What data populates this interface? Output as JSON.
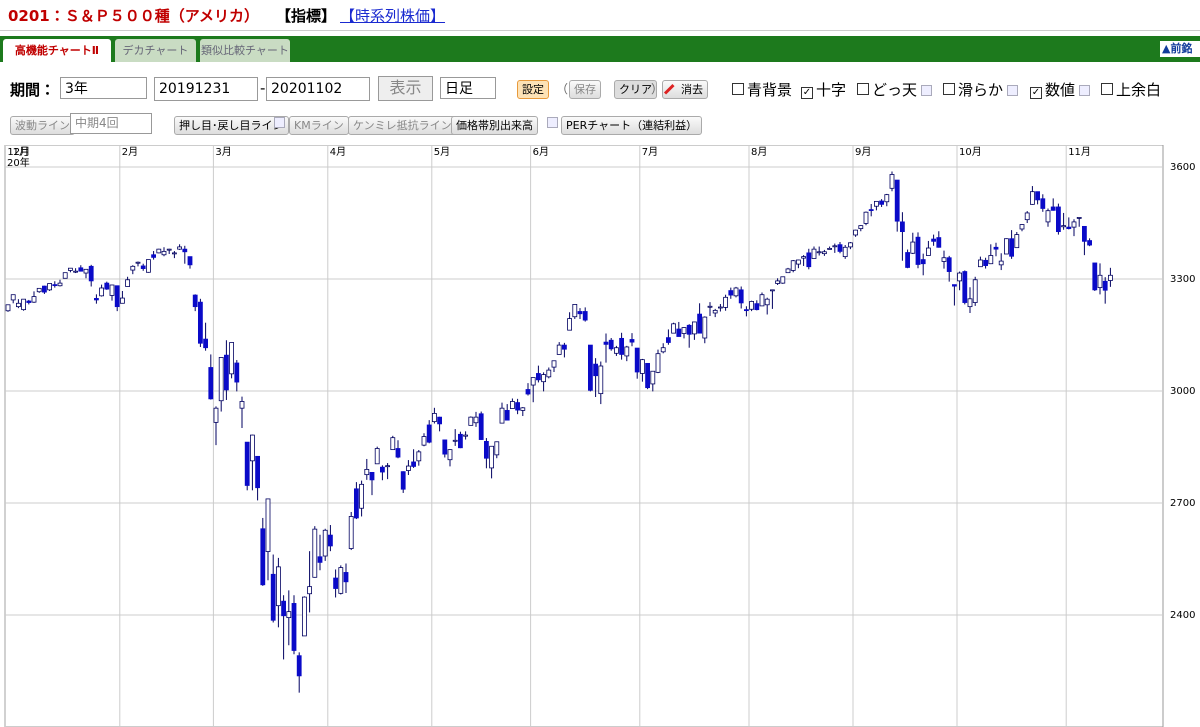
{
  "header": {
    "name": "0201：Ｓ＆Ｐ５００種（アメリカ）",
    "kind": "【指標】",
    "link": "【時系列株価】"
  },
  "tabs": [
    "高機能チャートⅡ",
    "デカチャート",
    "類似比較チャート"
  ],
  "nav_button": "▲前銘",
  "controls": {
    "period_label": "期間：",
    "period": "3年",
    "from": "20191231",
    "separator": "-",
    "to": "20201102",
    "show": "表示",
    "interval": "日足",
    "settings": "設定",
    "paren_open": "（",
    "save": "保存",
    "clear": "クリア",
    "paren_close": "）",
    "erase": "消去",
    "options": [
      {
        "label": "青背景",
        "checked": false,
        "help": false
      },
      {
        "label": "十字",
        "checked": true,
        "help": false
      },
      {
        "label": "どっ天",
        "checked": false,
        "help": true
      },
      {
        "label": "滑らか",
        "checked": false,
        "help": true
      },
      {
        "label": "数値",
        "checked": true,
        "help": true
      },
      {
        "label": "上余白",
        "checked": false,
        "help": false
      }
    ]
  },
  "tools": {
    "wave": "波動ライン",
    "term": "中期4回",
    "pullback": "押し目･戻し目ライン",
    "km": "KMライン",
    "resist": "ケンミレ抵抗ライン",
    "volume": "価格帯別出来高",
    "per": "PERチャート（連結利益）"
  },
  "chart_data": {
    "type": "candlestick",
    "x_year_label": "20年",
    "categories": [
      "12月",
      "1月",
      null,
      null,
      null,
      null,
      null,
      null,
      null,
      null,
      null,
      null,
      null,
      null,
      null,
      null,
      null,
      null,
      null,
      null,
      null,
      null,
      "2月",
      null,
      null,
      null,
      null,
      null,
      null,
      null,
      null,
      null,
      null,
      null,
      null,
      null,
      null,
      null,
      null,
      null,
      "3月",
      null,
      null,
      null,
      null,
      null,
      null,
      null,
      null,
      null,
      null,
      null,
      null,
      null,
      null,
      null,
      null,
      null,
      null,
      null,
      null,
      null,
      "4月",
      null,
      null,
      null,
      null,
      null,
      null,
      null,
      null,
      null,
      null,
      null,
      null,
      null,
      null,
      null,
      null,
      null,
      null,
      null,
      "5月",
      null,
      null,
      null,
      null,
      null,
      null,
      null,
      null,
      null,
      null,
      null,
      null,
      null,
      null,
      null,
      null,
      null,
      null,
      "6月",
      null,
      null,
      null,
      null,
      null,
      null,
      null,
      null,
      null,
      null,
      null,
      null,
      null,
      null,
      null,
      null,
      null,
      null,
      null,
      null,
      "7月",
      null,
      null,
      null,
      null,
      null,
      null,
      null,
      null,
      null,
      null,
      null,
      null,
      null,
      null,
      null,
      null,
      null,
      null,
      null,
      null,
      "8月",
      null,
      null,
      null,
      null,
      null,
      null,
      null,
      null,
      null,
      null,
      null,
      null,
      null,
      null,
      null,
      null,
      null,
      null,
      null,
      "9月",
      null,
      null,
      null,
      null,
      null,
      null,
      null,
      null,
      null,
      null,
      null,
      null,
      null,
      null,
      null,
      null,
      null,
      null,
      null,
      "10月",
      null,
      null,
      null,
      null,
      null,
      null,
      null,
      null,
      null,
      null,
      null,
      null,
      null,
      null,
      null,
      null,
      null,
      null,
      null,
      null,
      "11月"
    ],
    "ohlc": [
      [
        3215,
        3231,
        3212,
        3231
      ],
      [
        3244,
        3258,
        3235,
        3258
      ],
      [
        3226,
        3246,
        3222,
        3235
      ],
      [
        3218,
        3246,
        3215,
        3246
      ],
      [
        3241,
        3244,
        3232,
        3237
      ],
      [
        3238,
        3267,
        3236,
        3253
      ],
      [
        3266,
        3275,
        3263,
        3275
      ],
      [
        3281,
        3282,
        3260,
        3265
      ],
      [
        3271,
        3288,
        3268,
        3288
      ],
      [
        3285,
        3294,
        3277,
        3283
      ],
      [
        3282,
        3298,
        3280,
        3289
      ],
      [
        3302,
        3317,
        3302,
        3317
      ],
      [
        3323,
        3329,
        3318,
        3329
      ],
      [
        3321,
        3329,
        3316,
        3321
      ],
      [
        3330,
        3337,
        3320,
        3321
      ],
      [
        3316,
        3326,
        3302,
        3326
      ],
      [
        3334,
        3338,
        3280,
        3295
      ],
      [
        3248,
        3259,
        3234,
        3244
      ],
      [
        3255,
        3285,
        3253,
        3276
      ],
      [
        3289,
        3293,
        3271,
        3273
      ],
      [
        3256,
        3285,
        3242,
        3284
      ],
      [
        3282,
        3282,
        3214,
        3226
      ],
      [
        3235,
        3268,
        3235,
        3249
      ],
      [
        3280,
        3306,
        3280,
        3298
      ],
      [
        3324,
        3337,
        3313,
        3334
      ],
      [
        3344,
        3347,
        3334,
        3345
      ],
      [
        3335,
        3341,
        3322,
        3328
      ],
      [
        3318,
        3352,
        3317,
        3352
      ],
      [
        3365,
        3375,
        3352,
        3358
      ],
      [
        3370,
        3381,
        3369,
        3380
      ],
      [
        3365,
        3385,
        3361,
        3374
      ],
      [
        3378,
        3381,
        3367,
        3380
      ],
      [
        3370,
        3375,
        3356,
        3370
      ],
      [
        3380,
        3393,
        3378,
        3386
      ],
      [
        3380,
        3389,
        3341,
        3373
      ],
      [
        3360,
        3360,
        3328,
        3338
      ],
      [
        3257,
        3259,
        3214,
        3226
      ],
      [
        3238,
        3247,
        3118,
        3128
      ],
      [
        3139,
        3183,
        3108,
        3116
      ],
      [
        3063,
        3098,
        2977,
        2979
      ],
      [
        2916,
        2959,
        2855,
        2954
      ],
      [
        2974,
        3091,
        2945,
        3090
      ],
      [
        3096,
        3136,
        2976,
        3003
      ],
      [
        3046,
        3130,
        3034,
        3130
      ],
      [
        3075,
        3083,
        2999,
        3024
      ],
      [
        2954,
        2985,
        2901,
        2972
      ],
      [
        2863,
        2863,
        2734,
        2747
      ],
      [
        2813,
        2883,
        2734,
        2882
      ],
      [
        2825,
        2825,
        2707,
        2741
      ],
      [
        2631,
        2660,
        2478,
        2481
      ],
      [
        2570,
        2711,
        2493,
        2711
      ],
      [
        2509,
        2562,
        2380,
        2386
      ],
      [
        2425,
        2553,
        2367,
        2529
      ],
      [
        2437,
        2453,
        2281,
        2398
      ],
      [
        2393,
        2466,
        2319,
        2409
      ],
      [
        2431,
        2453,
        2295,
        2305
      ],
      [
        2291,
        2300,
        2192,
        2237
      ],
      [
        2344,
        2450,
        2344,
        2448
      ],
      [
        2457,
        2571,
        2407,
        2476
      ],
      [
        2501,
        2638,
        2500,
        2630
      ],
      [
        2556,
        2615,
        2520,
        2541
      ],
      [
        2558,
        2631,
        2545,
        2627
      ],
      [
        2614,
        2641,
        2571,
        2585
      ],
      [
        2499,
        2522,
        2447,
        2471
      ],
      [
        2458,
        2533,
        2455,
        2527
      ],
      [
        2514,
        2538,
        2459,
        2489
      ],
      [
        2578,
        2676,
        2574,
        2664
      ],
      [
        2738,
        2756,
        2657,
        2660
      ],
      [
        2686,
        2760,
        2664,
        2750
      ],
      [
        2776,
        2818,
        2762,
        2790
      ],
      [
        2782,
        2782,
        2721,
        2762
      ],
      [
        2805,
        2851,
        2805,
        2846
      ],
      [
        2796,
        2801,
        2761,
        2783
      ],
      [
        2799,
        2807,
        2764,
        2800
      ],
      [
        2843,
        2880,
        2843,
        2875
      ],
      [
        2846,
        2868,
        2820,
        2823
      ],
      [
        2784,
        2785,
        2727,
        2737
      ],
      [
        2787,
        2815,
        2775,
        2799
      ],
      [
        2810,
        2844,
        2794,
        2798
      ],
      [
        2813,
        2842,
        2800,
        2837
      ],
      [
        2855,
        2887,
        2852,
        2878
      ],
      [
        2909,
        2922,
        2860,
        2863
      ],
      [
        2918,
        2955,
        2913,
        2940
      ],
      [
        2930,
        2931,
        2892,
        2912
      ],
      [
        2869,
        2870,
        2822,
        2831
      ],
      [
        2816,
        2844,
        2798,
        2843
      ],
      [
        2868,
        2898,
        2853,
        2868
      ],
      [
        2884,
        2891,
        2847,
        2848
      ],
      [
        2879,
        2892,
        2870,
        2882
      ],
      [
        2908,
        2932,
        2908,
        2930
      ],
      [
        2915,
        2944,
        2904,
        2930
      ],
      [
        2939,
        2945,
        2869,
        2870
      ],
      [
        2865,
        2874,
        2793,
        2820
      ],
      [
        2794,
        2852,
        2766,
        2852
      ],
      [
        2829,
        2865,
        2820,
        2864
      ],
      [
        2914,
        2969,
        2913,
        2954
      ],
      [
        2948,
        2965,
        2922,
        2922
      ],
      [
        2953,
        2980,
        2953,
        2972
      ],
      [
        2969,
        2979,
        2938,
        2949
      ],
      [
        2948,
        2957,
        2933,
        2955
      ],
      [
        3004,
        3021,
        2988,
        2992
      ],
      [
        3016,
        3036,
        2970,
        3036
      ],
      [
        3047,
        3068,
        3023,
        3030
      ],
      [
        3025,
        3050,
        2999,
        3044
      ],
      [
        3038,
        3063,
        3034,
        3056
      ],
      [
        3064,
        3081,
        3051,
        3081
      ],
      [
        3098,
        3131,
        3098,
        3123
      ],
      [
        3123,
        3129,
        3090,
        3112
      ],
      [
        3163,
        3211,
        3163,
        3194
      ],
      [
        3199,
        3233,
        3193,
        3232
      ],
      [
        3213,
        3222,
        3193,
        3207
      ],
      [
        3213,
        3224,
        3186,
        3190
      ],
      [
        3123,
        3123,
        2999,
        3002
      ],
      [
        3072,
        3088,
        2984,
        3041
      ],
      [
        2993,
        3079,
        2965,
        3067
      ],
      [
        3131,
        3154,
        3076,
        3125
      ],
      [
        3136,
        3142,
        3108,
        3113
      ],
      [
        3101,
        3121,
        3094,
        3116
      ],
      [
        3141,
        3156,
        3084,
        3098
      ],
      [
        3094,
        3121,
        3080,
        3118
      ],
      [
        3138,
        3155,
        3120,
        3131
      ],
      [
        3115,
        3115,
        3033,
        3051
      ],
      [
        3047,
        3086,
        3025,
        3084
      ],
      [
        3074,
        3074,
        3005,
        3009
      ],
      [
        3019,
        3053,
        2999,
        3053
      ],
      [
        3050,
        3111,
        3048,
        3100
      ],
      [
        3105,
        3128,
        3101,
        3116
      ],
      [
        3143,
        3165,
        3124,
        3130
      ],
      [
        3155,
        3183,
        3155,
        3180
      ],
      [
        3166,
        3185,
        3146,
        3146
      ],
      [
        3154,
        3171,
        3141,
        3170
      ],
      [
        3176,
        3179,
        3116,
        3152
      ],
      [
        3153,
        3186,
        3137,
        3185
      ],
      [
        3206,
        3235,
        3156,
        3155
      ],
      [
        3142,
        3200,
        3128,
        3198
      ],
      [
        3226,
        3238,
        3201,
        3227
      ],
      [
        3209,
        3220,
        3198,
        3216
      ],
      [
        3224,
        3233,
        3213,
        3225
      ],
      [
        3224,
        3258,
        3215,
        3251
      ],
      [
        3269,
        3277,
        3247,
        3257
      ],
      [
        3255,
        3279,
        3251,
        3276
      ],
      [
        3271,
        3280,
        3221,
        3236
      ],
      [
        3218,
        3227,
        3200,
        3216
      ],
      [
        3219,
        3242,
        3214,
        3240
      ],
      [
        3234,
        3243,
        3216,
        3218
      ],
      [
        3228,
        3264,
        3228,
        3258
      ],
      [
        3231,
        3250,
        3205,
        3246
      ],
      [
        3270,
        3272,
        3220,
        3271
      ],
      [
        3288,
        3302,
        3284,
        3295
      ],
      [
        3289,
        3306,
        3287,
        3306
      ],
      [
        3317,
        3330,
        3317,
        3327
      ],
      [
        3323,
        3351,
        3318,
        3349
      ],
      [
        3340,
        3352,
        3329,
        3351
      ],
      [
        3356,
        3364,
        3335,
        3360
      ],
      [
        3370,
        3381,
        3326,
        3333
      ],
      [
        3355,
        3387,
        3355,
        3380
      ],
      [
        3372,
        3387,
        3363,
        3373
      ],
      [
        3368,
        3378,
        3362,
        3373
      ],
      [
        3380,
        3387,
        3379,
        3382
      ],
      [
        3387,
        3395,
        3370,
        3389
      ],
      [
        3392,
        3399,
        3369,
        3374
      ],
      [
        3360,
        3391,
        3354,
        3385
      ],
      [
        3386,
        3399,
        3380,
        3397
      ],
      [
        3418,
        3432,
        3413,
        3431
      ],
      [
        3435,
        3444,
        3428,
        3443
      ],
      [
        3449,
        3481,
        3444,
        3479
      ],
      [
        3486,
        3501,
        3468,
        3484
      ],
      [
        3495,
        3509,
        3484,
        3508
      ],
      [
        3509,
        3514,
        3493,
        3500
      ],
      [
        3507,
        3528,
        3495,
        3526
      ],
      [
        3543,
        3588,
        3535,
        3580
      ],
      [
        3565,
        3564,
        3427,
        3455
      ],
      [
        3453,
        3479,
        3349,
        3427
      ],
      [
        3371,
        3379,
        3329,
        3331
      ],
      [
        3369,
        3424,
        3367,
        3399
      ],
      [
        3412,
        3425,
        3329,
        3339
      ],
      [
        3352,
        3368,
        3310,
        3341
      ],
      [
        3363,
        3402,
        3363,
        3383
      ],
      [
        3407,
        3419,
        3389,
        3401
      ],
      [
        3411,
        3428,
        3384,
        3385
      ],
      [
        3347,
        3376,
        3328,
        3357
      ],
      [
        3357,
        3362,
        3293,
        3320
      ],
      [
        3285,
        3285,
        3229,
        3281
      ],
      [
        3295,
        3320,
        3270,
        3316
      ],
      [
        3320,
        3323,
        3232,
        3237
      ],
      [
        3226,
        3278,
        3209,
        3247
      ],
      [
        3237,
        3306,
        3228,
        3298
      ],
      [
        3333,
        3360,
        3333,
        3351
      ],
      [
        3350,
        3357,
        3328,
        3336
      ],
      [
        3341,
        3393,
        3340,
        3363
      ],
      [
        3385,
        3397,
        3361,
        3380
      ],
      [
        3338,
        3369,
        3324,
        3348
      ],
      [
        3367,
        3409,
        3367,
        3408
      ],
      [
        3408,
        3431,
        3354,
        3361
      ],
      [
        3384,
        3426,
        3384,
        3419
      ],
      [
        3434,
        3447,
        3428,
        3446
      ],
      [
        3459,
        3482,
        3450,
        3477
      ],
      [
        3500,
        3549,
        3499,
        3534
      ],
      [
        3534,
        3534,
        3500,
        3512
      ],
      [
        3515,
        3527,
        3480,
        3489
      ],
      [
        3453,
        3489,
        3440,
        3483
      ],
      [
        3493,
        3516,
        3483,
        3484
      ],
      [
        3493,
        3502,
        3419,
        3427
      ],
      [
        3440,
        3477,
        3432,
        3443
      ],
      [
        3439,
        3465,
        3433,
        3435
      ],
      [
        3439,
        3460,
        3415,
        3453
      ],
      [
        3464,
        3466,
        3440,
        3465
      ],
      [
        3441,
        3441,
        3364,
        3401
      ],
      [
        3403,
        3409,
        3388,
        3391
      ],
      [
        3343,
        3343,
        3268,
        3271
      ],
      [
        3277,
        3342,
        3259,
        3310
      ],
      [
        3294,
        3305,
        3234,
        3270
      ],
      [
        3296,
        3330,
        3279,
        3310
      ]
    ],
    "up_color": "#ffffff",
    "down_color": "#0a0ac8",
    "wick_color": "#000060",
    "ylim": [
      2100,
      3659
    ],
    "yticks": [
      2400,
      2700,
      3000,
      3300,
      3600
    ],
    "grid": true
  }
}
